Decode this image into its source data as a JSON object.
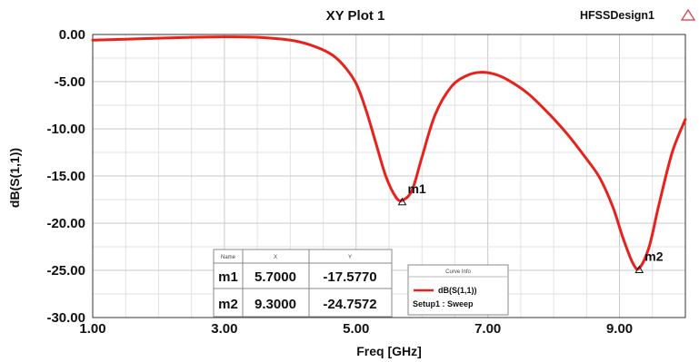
{
  "chart_data": {
    "type": "line",
    "title": "XY Plot 1",
    "design_name": "HFSSDesign1",
    "xlabel": "Freq [GHz]",
    "ylabel": "dB(S(1,1))",
    "xlim": [
      1.0,
      10.0
    ],
    "ylim": [
      -30.0,
      0.0
    ],
    "x_ticks": [
      "1.00",
      "3.00",
      "5.00",
      "7.00",
      "9.00"
    ],
    "y_ticks": [
      "0.00",
      "-5.00",
      "-10.00",
      "-15.00",
      "-20.00",
      "-25.00",
      "-30.00"
    ],
    "grid": true,
    "series": [
      {
        "name": "dB(S(1,1))",
        "sub_name": "Setup1 : Sweep",
        "color": "#e8211c",
        "x": [
          1.0,
          1.5,
          2.0,
          2.5,
          3.0,
          3.5,
          4.0,
          4.3,
          4.6,
          4.8,
          5.0,
          5.15,
          5.3,
          5.45,
          5.6,
          5.7,
          5.85,
          6.0,
          6.2,
          6.45,
          6.7,
          6.9,
          7.1,
          7.3,
          7.6,
          7.9,
          8.2,
          8.5,
          8.7,
          8.9,
          9.05,
          9.2,
          9.3,
          9.45,
          9.6,
          9.8,
          10.0
        ],
        "y": [
          -0.6,
          -0.5,
          -0.4,
          -0.3,
          -0.25,
          -0.3,
          -0.6,
          -1.1,
          -2.0,
          -3.2,
          -5.2,
          -8.0,
          -11.5,
          -15.0,
          -17.2,
          -17.577,
          -16.5,
          -13.0,
          -8.5,
          -5.5,
          -4.3,
          -4.0,
          -4.2,
          -4.8,
          -6.2,
          -8.2,
          -10.5,
          -13.2,
          -15.2,
          -18.3,
          -21.5,
          -24.2,
          -24.757,
          -22.5,
          -18.0,
          -12.5,
          -9.0
        ]
      }
    ],
    "markers": [
      {
        "name": "m1",
        "x": 5.7,
        "y": -17.577
      },
      {
        "name": "m2",
        "x": 9.3,
        "y": -24.7572
      }
    ],
    "marker_table": {
      "headers": [
        "Name",
        "X",
        "Y"
      ],
      "rows": [
        [
          "m1",
          "5.7000",
          "-17.5770"
        ],
        [
          "m2",
          "9.3000",
          "-24.7572"
        ]
      ]
    },
    "legend_title": "Curve Info"
  }
}
